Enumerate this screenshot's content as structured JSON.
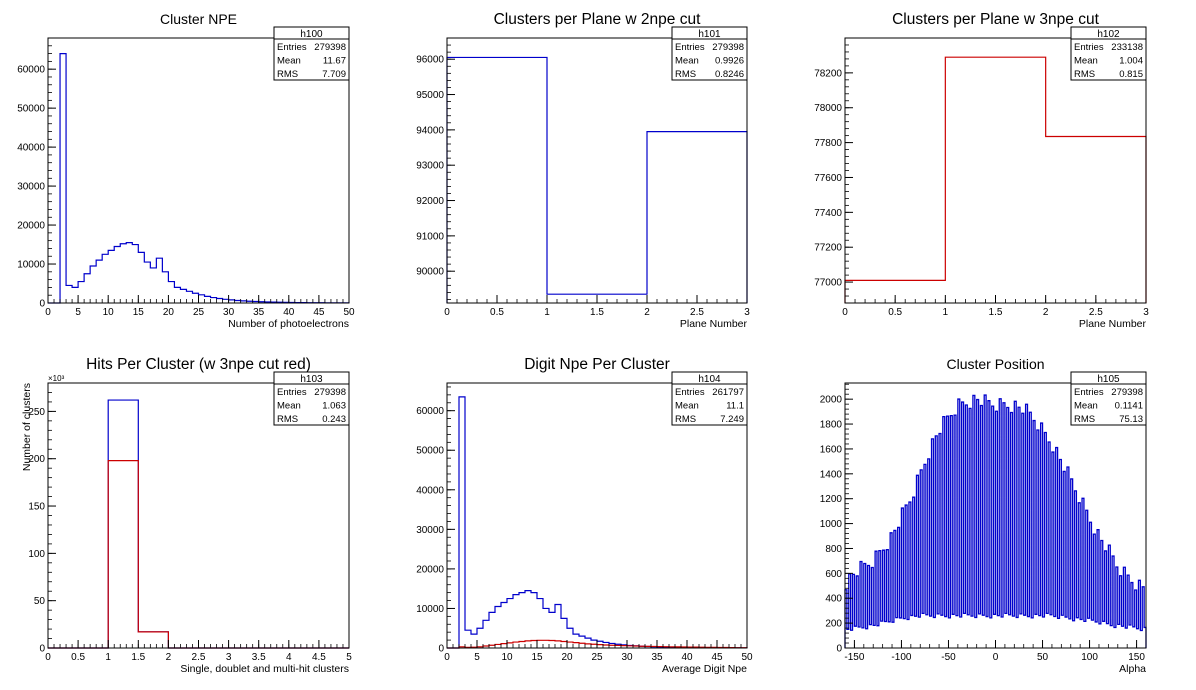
{
  "chart_data": [
    {
      "type": "histogram",
      "title": "Cluster NPE",
      "xlabel": "Number of photoelectrons",
      "ylabel": "",
      "xlim": [
        0,
        50
      ],
      "ylim": [
        0,
        68000
      ],
      "xticks": [
        0,
        5,
        10,
        15,
        20,
        25,
        30,
        35,
        40,
        45,
        50
      ],
      "yticks": [
        0,
        10000,
        20000,
        30000,
        40000,
        50000,
        60000
      ],
      "stats": {
        "name": "h100",
        "rows": [
          [
            "Entries",
            "279398"
          ],
          [
            "Mean",
            "11.67"
          ],
          [
            "RMS",
            "7.709"
          ]
        ]
      },
      "series": [
        {
          "color": "#0000cc",
          "edges": [
            0,
            50
          ],
          "values": [
            0,
            0,
            64000,
            4500,
            4000,
            5500,
            7500,
            9500,
            11000,
            12500,
            13500,
            14500,
            15200,
            15500,
            15000,
            13000,
            10500,
            9000,
            11500,
            8000,
            5500,
            4000,
            3500,
            3000,
            2500,
            2100,
            1700,
            1400,
            1150,
            950,
            800,
            650,
            550,
            450,
            380,
            320,
            270,
            230,
            190,
            160,
            130,
            110,
            90,
            80,
            70,
            60,
            50,
            40,
            35,
            30
          ]
        }
      ]
    },
    {
      "type": "histogram",
      "title": "Clusters per Plane w 2npe cut",
      "xlabel": "Plane Number",
      "ylabel": "",
      "xlim": [
        0,
        3
      ],
      "ylim": [
        89100,
        96600
      ],
      "xticks": [
        0,
        0.5,
        1,
        1.5,
        2,
        2.5,
        3
      ],
      "yticks": [
        90000,
        91000,
        92000,
        93000,
        94000,
        95000,
        96000
      ],
      "stats": {
        "name": "h101",
        "rows": [
          [
            "Entries",
            "279398"
          ],
          [
            "Mean",
            "0.9926"
          ],
          [
            "RMS",
            "0.8246"
          ]
        ]
      },
      "series": [
        {
          "color": "#0000cc",
          "edges": [
            0,
            3
          ],
          "values": [
            96050,
            89350,
            93950
          ]
        }
      ]
    },
    {
      "type": "histogram",
      "title": "Clusters per Plane w 3npe cut",
      "xlabel": "Plane Number",
      "ylabel": "",
      "xlim": [
        0,
        3
      ],
      "ylim": [
        76880,
        78400
      ],
      "xticks": [
        0,
        0.5,
        1,
        1.5,
        2,
        2.5,
        3
      ],
      "yticks": [
        77000,
        77200,
        77400,
        77600,
        77800,
        78000,
        78200
      ],
      "stats": {
        "name": "h102",
        "rows": [
          [
            "Entries",
            "233138"
          ],
          [
            "Mean",
            "1.004"
          ],
          [
            "RMS",
            "0.815"
          ]
        ]
      },
      "series": [
        {
          "color": "#cc0000",
          "edges": [
            0,
            3
          ],
          "values": [
            77010,
            78290,
            77835
          ]
        }
      ]
    },
    {
      "type": "histogram",
      "title": "Hits Per Cluster (w 3npe cut red)",
      "xlabel": "Single, doublet and multi-hit clusters",
      "ylabel": "Number of clusters",
      "scale_label": "×10³",
      "xlim": [
        0,
        5
      ],
      "ylim": [
        0,
        280
      ],
      "xticks": [
        0,
        0.5,
        1,
        1.5,
        2,
        2.5,
        3,
        3.5,
        4,
        4.5,
        5
      ],
      "yticks": [
        0,
        50,
        100,
        150,
        200,
        250
      ],
      "stats": {
        "name": "h103",
        "rows": [
          [
            "Entries",
            "279398"
          ],
          [
            "Mean",
            "1.063"
          ],
          [
            "RMS",
            "0.243"
          ]
        ]
      },
      "series": [
        {
          "color": "#0000cc",
          "edges": [
            0,
            5
          ],
          "values": [
            0,
            0,
            262,
            17,
            0,
            0,
            0,
            0,
            0,
            0
          ]
        },
        {
          "color": "#cc0000",
          "edges": [
            0,
            5
          ],
          "values": [
            0,
            0,
            198,
            17,
            0,
            0,
            0,
            0,
            0,
            0
          ]
        }
      ]
    },
    {
      "type": "histogram",
      "title": "Digit Npe Per Cluster",
      "xlabel": "Average Digit Npe",
      "ylabel": "",
      "xlim": [
        0,
        50
      ],
      "ylim": [
        0,
        67000
      ],
      "xticks": [
        0,
        5,
        10,
        15,
        20,
        25,
        30,
        35,
        40,
        45,
        50
      ],
      "yticks": [
        0,
        10000,
        20000,
        30000,
        40000,
        50000,
        60000
      ],
      "stats": {
        "name": "h104",
        "rows": [
          [
            "Entries",
            "261797"
          ],
          [
            "Mean",
            "11.1"
          ],
          [
            "RMS",
            "7.249"
          ]
        ]
      },
      "series": [
        {
          "color": "#0000cc",
          "edges": [
            0,
            50
          ],
          "values": [
            0,
            0,
            63500,
            4500,
            3500,
            5000,
            7000,
            9000,
            10500,
            11500,
            12500,
            13500,
            14000,
            14500,
            14000,
            12500,
            10000,
            9000,
            11000,
            7500,
            5000,
            3500,
            3000,
            2500,
            2000,
            1700,
            1400,
            1150,
            950,
            800,
            650,
            550,
            450,
            380,
            320,
            270,
            230,
            190,
            160,
            130,
            110,
            90,
            80,
            70,
            60,
            50,
            40,
            35,
            30,
            20
          ]
        },
        {
          "color": "#cc0000",
          "edges": [
            0,
            50
          ],
          "values": [
            0,
            0,
            300,
            150,
            200,
            300,
            500,
            700,
            900,
            1100,
            1300,
            1500,
            1650,
            1800,
            1900,
            1950,
            1950,
            1900,
            1800,
            1650,
            1500,
            1350,
            1200,
            1050,
            950,
            850,
            750,
            700,
            650,
            600,
            550,
            500,
            450,
            420,
            390,
            360,
            330,
            300,
            280,
            260,
            240,
            220,
            200,
            180,
            160,
            140,
            120,
            100,
            80,
            60
          ]
        }
      ]
    },
    {
      "type": "histogram",
      "title": "Cluster Position",
      "xlabel": "Alpha",
      "ylabel": "",
      "xlim": [
        -160,
        160
      ],
      "ylim": [
        0,
        2130
      ],
      "xticks": [
        -150,
        -100,
        -50,
        0,
        50,
        100,
        150
      ],
      "yticks": [
        0,
        200,
        400,
        600,
        800,
        1000,
        1200,
        1400,
        1600,
        1800,
        2000
      ],
      "stats": {
        "name": "h105",
        "rows": [
          [
            "Entries",
            "279398"
          ],
          [
            "Mean",
            "0.1141"
          ],
          [
            "RMS",
            "75.13"
          ]
        ]
      },
      "position_envelope": {
        "range": [
          -160,
          160
        ],
        "bin_width": 2,
        "peak_x": [
          -160,
          -150,
          -140,
          -130,
          -120,
          -110,
          -100,
          -90,
          -80,
          -70,
          -60,
          -50,
          -40,
          -30,
          -20,
          -10,
          0,
          10,
          20,
          30,
          40,
          50,
          60,
          70,
          80,
          90,
          100,
          110,
          120,
          130,
          140,
          150,
          160
        ],
        "peak_y": [
          520,
          600,
          650,
          700,
          800,
          900,
          1050,
          1200,
          1400,
          1600,
          1750,
          1850,
          1950,
          1980,
          2000,
          1970,
          1950,
          1960,
          1950,
          1920,
          1850,
          1750,
          1650,
          1500,
          1350,
          1200,
          1050,
          900,
          780,
          650,
          580,
          520,
          480
        ],
        "valley_y": [
          150,
          160,
          170,
          180,
          200,
          220,
          240,
          250,
          260,
          260,
          260,
          260,
          260,
          260,
          260,
          260,
          260,
          260,
          260,
          260,
          260,
          260,
          260,
          250,
          240,
          230,
          220,
          210,
          190,
          180,
          170,
          160,
          150
        ],
        "color": "#0000cc"
      }
    }
  ]
}
